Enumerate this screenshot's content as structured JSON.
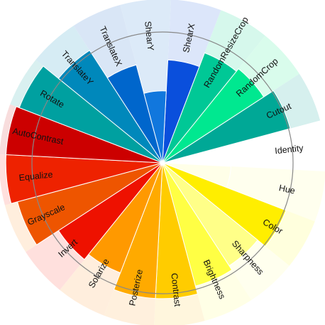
{
  "chart_data": {
    "type": "polar-bar",
    "title": "",
    "xlabel": "",
    "ylabel": "",
    "r_max": 1.0,
    "reference_circle": 0.8,
    "categories": [
      "ShearX",
      "RandomResizeCrop",
      "RandomCrop",
      "Cutout",
      "Identity",
      "Hue",
      "Color",
      "Sharpness",
      "Brightness",
      "Contrast",
      "Posterize",
      "Solarize",
      "Invert",
      "Grayscale",
      "Equalize",
      "AutoContrast",
      "Rotate",
      "TranslateY",
      "TranslateX",
      "ShearY"
    ],
    "values": [
      0.63,
      0.72,
      0.74,
      0.81,
      0.0,
      0.42,
      0.81,
      0.75,
      0.78,
      0.83,
      0.83,
      0.72,
      0.76,
      0.92,
      0.96,
      0.96,
      0.94,
      0.82,
      0.62,
      0.44
    ],
    "colors": [
      "#0a4fdc",
      "#00c896",
      "#00e890",
      "#00a896",
      "#ffffff",
      "#ffffe8",
      "#ffee00",
      "#ffff88",
      "#ffff44",
      "#ffcc00",
      "#ffaa00",
      "#ff9900",
      "#ee1100",
      "#ee5500",
      "#ee2200",
      "#cc0000",
      "#00a0a0",
      "#0088bb",
      "#0066cc",
      "#1177dd"
    ],
    "background_colors": [
      "#dce6fa",
      "#d6f8ec",
      "#d9fcec",
      "#d6f0ee",
      "#ffffff",
      "#ffffee",
      "#ffffdd",
      "#ffffee",
      "#ffffe6",
      "#fff6dd",
      "#fff0dd",
      "#ffeedd",
      "#ffe0dd",
      "#ffeedd",
      "#ffe0dd",
      "#f8dddd",
      "#d9f0f0",
      "#d6ecf4",
      "#d9e6f6",
      "#dceaf8"
    ]
  }
}
